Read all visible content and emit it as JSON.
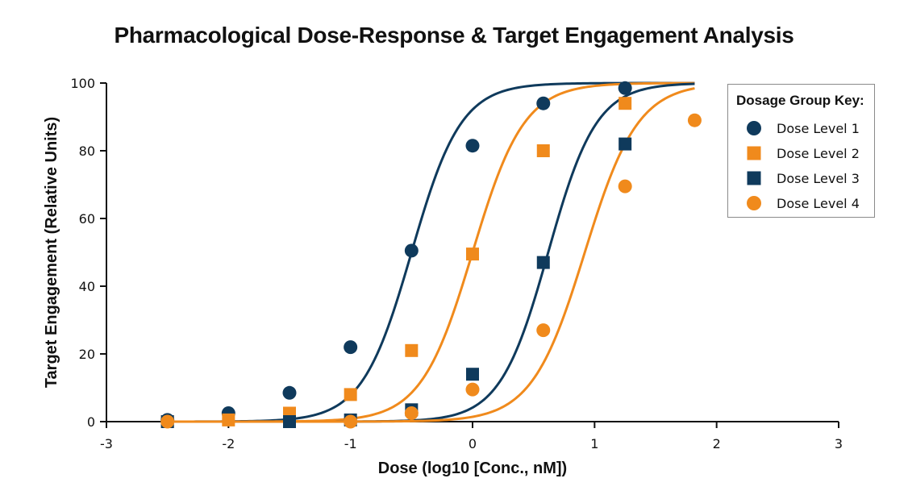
{
  "chart_data": {
    "type": "scatter",
    "title": "Pharmacological Dose-Response & Target Engagement Analysis",
    "xlabel": "Dose (log10 [Conc., nM])",
    "ylabel": "Target Engagement (Relative Units)",
    "xlim": [
      -3,
      3
    ],
    "ylim": [
      0,
      100
    ],
    "xticks": [
      -3,
      -2,
      -1,
      0,
      1,
      2,
      3
    ],
    "yticks": [
      0,
      20,
      40,
      60,
      80,
      100
    ],
    "grid": false,
    "legend_title": "Dosage Group Key:",
    "legend_position": "top-right",
    "series": [
      {
        "name": "Dose Level 1",
        "marker": "circle",
        "color": "#0f3a5c",
        "x": [
          -2.5,
          -2.0,
          -1.5,
          -1.0,
          -0.5,
          0.0,
          0.58,
          1.25
        ],
        "y": [
          0.5,
          2.5,
          8.5,
          22,
          50.5,
          81.5,
          94,
          98.5
        ],
        "fit": {
          "ec50": -0.5,
          "hill": 1.07
        }
      },
      {
        "name": "Dose Level 2",
        "marker": "square",
        "color": "#f08a1c",
        "x": [
          -2.5,
          -2.0,
          -1.5,
          -1.0,
          -0.5,
          0.0,
          0.58,
          1.25
        ],
        "y": [
          0,
          0.5,
          2.5,
          8,
          21,
          49.5,
          80,
          94
        ],
        "fit": {
          "ec50": 0.0,
          "hill": 1.03
        }
      },
      {
        "name": "Dose Level 3",
        "marker": "square",
        "color": "#0f3a5c",
        "x": [
          -2.5,
          -1.5,
          -1.0,
          -0.5,
          0.0,
          0.58,
          1.25
        ],
        "y": [
          0,
          0,
          0.5,
          3.5,
          14,
          47,
          82
        ],
        "fit": {
          "ec50": 0.62,
          "hill": 1.1
        }
      },
      {
        "name": "Dose Level 4",
        "marker": "circle",
        "color": "#f08a1c",
        "x": [
          -2.5,
          -1.0,
          -0.5,
          0.0,
          0.58,
          1.25,
          1.82
        ],
        "y": [
          0,
          0,
          2.5,
          9.5,
          27,
          69.5,
          89
        ],
        "fit": {
          "ec50": 0.92,
          "hill": 1.0
        }
      }
    ]
  }
}
